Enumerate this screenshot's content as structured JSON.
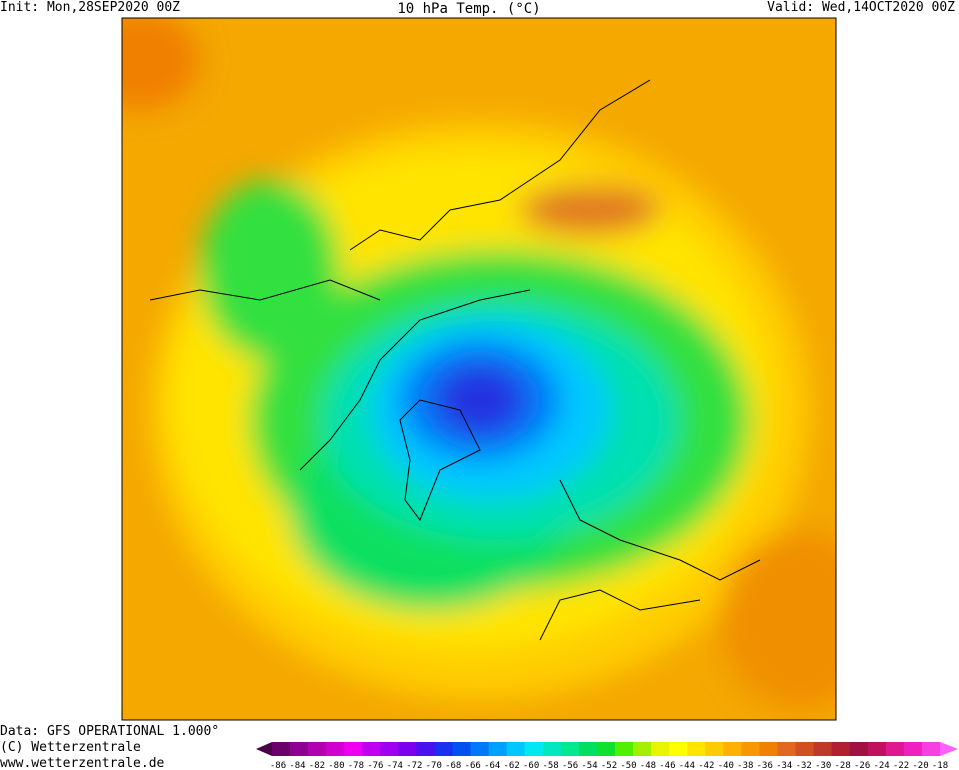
{
  "header": {
    "init": "Init: Mon,28SEP2020 00Z",
    "title": "10 hPa Temp. (°C)",
    "valid": "Valid: Wed,14OCT2020 00Z"
  },
  "footer": {
    "data": "Data: GFS OPERATIONAL 1.000°",
    "copyright": "(C) Wetterzentrale",
    "url": "www.wetterzentrale.de"
  },
  "colorbar": {
    "ticks": [
      -86,
      -84,
      -82,
      -80,
      -78,
      -76,
      -74,
      -72,
      -70,
      -68,
      -66,
      -64,
      -62,
      -60,
      -58,
      -56,
      -54,
      -52,
      -50,
      -48,
      -46,
      -44,
      -42,
      -40,
      -38,
      -36,
      -34,
      -32,
      -30,
      -28,
      -26,
      -24,
      -22,
      -20,
      -18
    ],
    "colors": [
      "#4a0048",
      "#6a006a",
      "#900090",
      "#b000b0",
      "#d000d0",
      "#f000f0",
      "#c000f0",
      "#a000f0",
      "#7a00f0",
      "#4a10f0",
      "#1a30f0",
      "#0050f0",
      "#0078f8",
      "#00a0ff",
      "#00c8ff",
      "#00e8f0",
      "#00e8c0",
      "#00e890",
      "#00e060",
      "#10e030",
      "#50f000",
      "#a0f000",
      "#e8f400",
      "#ffff00",
      "#ffe400",
      "#ffcc00",
      "#ffb000",
      "#f89800",
      "#f08000",
      "#e06820",
      "#d05020",
      "#c03828",
      "#b02030",
      "#a01040",
      "#c01060",
      "#e01890",
      "#f020c0",
      "#f840e0",
      "#ff60ff"
    ]
  }
}
